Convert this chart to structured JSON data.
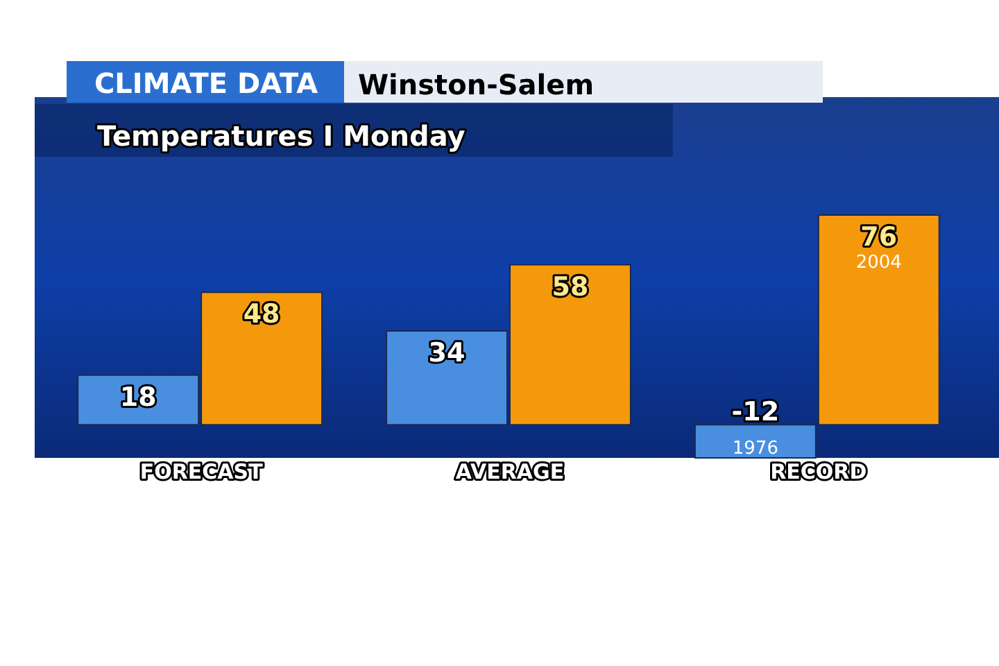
{
  "chart_data": {
    "type": "bar",
    "title": "CLIMATE DATA",
    "subtitle": "Winston-Salem",
    "categories": [
      "FORECAST",
      "AVERAGE",
      "RECORD"
    ],
    "series": [
      {
        "color": "#4a8fdf",
        "values": [
          18,
          34,
          -12
        ]
      },
      {
        "color": "#f5990c",
        "values": [
          48,
          58,
          76
        ]
      }
    ],
    "data_labels": true,
    "annotations": [
      "Temperatures  I  Monday",
      {
        "text": "1976",
        "x": "RECORD",
        "y": -12
      },
      {
        "text": "2004",
        "x": "RECORD",
        "y": 76
      }
    ]
  }
}
